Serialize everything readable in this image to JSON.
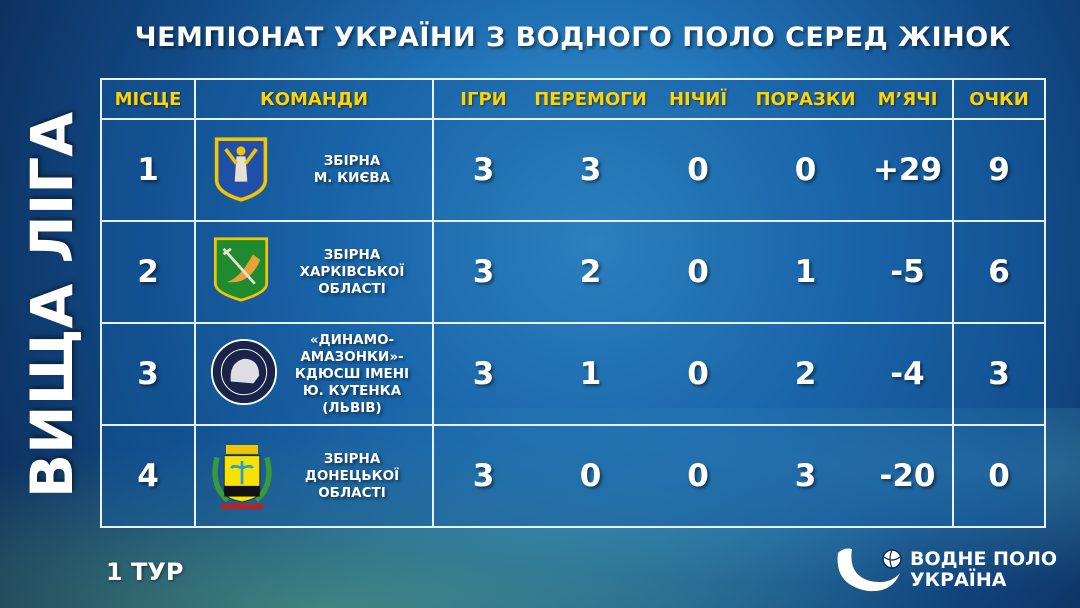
{
  "title": "ЧЕМПІОНАТ УКРАЇНИ З ВОДНОГО ПОЛО СЕРЕД ЖІНОК",
  "league": "ВИЩА ЛІГА",
  "round": "1 ТУР",
  "brand": {
    "line1": "ВОДНЕ ПОЛО",
    "line2": "УКРАЇНА"
  },
  "headers": [
    "МІСЦЕ",
    "КОМАНДИ",
    "ІГРИ",
    "ПЕРЕМОГИ",
    "НІЧИЇ",
    "ПОРАЗКИ",
    "М’ЯЧІ",
    "ОЧКИ"
  ],
  "colors": {
    "header_text": "#ffd200",
    "lines": "#e8f2fb"
  },
  "rows": [
    {
      "place": "1",
      "team": [
        "ЗБІРНА",
        "М. КИЄВА"
      ],
      "logo": "kyiv-coat-of-arms",
      "games": "3",
      "wins": "3",
      "draws": "0",
      "losses": "0",
      "goals": "+29",
      "points": "9"
    },
    {
      "place": "2",
      "team": [
        "ЗБІРНА",
        "ХАРКІВСЬКОЇ",
        "ОБЛАСТІ"
      ],
      "logo": "kharkiv-coat-of-arms",
      "games": "3",
      "wins": "2",
      "draws": "0",
      "losses": "1",
      "goals": "-5",
      "points": "6"
    },
    {
      "place": "3",
      "team": [
        "«ДИНАМО-",
        "АМАЗОНКИ»-",
        "КДЮСШ ІМЕНІ",
        "Ю. КУТЕНКА (ЛЬВІВ)"
      ],
      "logo": "dynamo-amazonky-logo",
      "games": "3",
      "wins": "1",
      "draws": "0",
      "losses": "2",
      "goals": "-4",
      "points": "3"
    },
    {
      "place": "4",
      "team": [
        "ЗБІРНА",
        "ДОНЕЦЬКОЇ",
        "ОБЛАСТІ"
      ],
      "logo": "donetsk-coat-of-arms",
      "games": "3",
      "wins": "0",
      "draws": "0",
      "losses": "3",
      "goals": "-20",
      "points": "0"
    }
  ]
}
